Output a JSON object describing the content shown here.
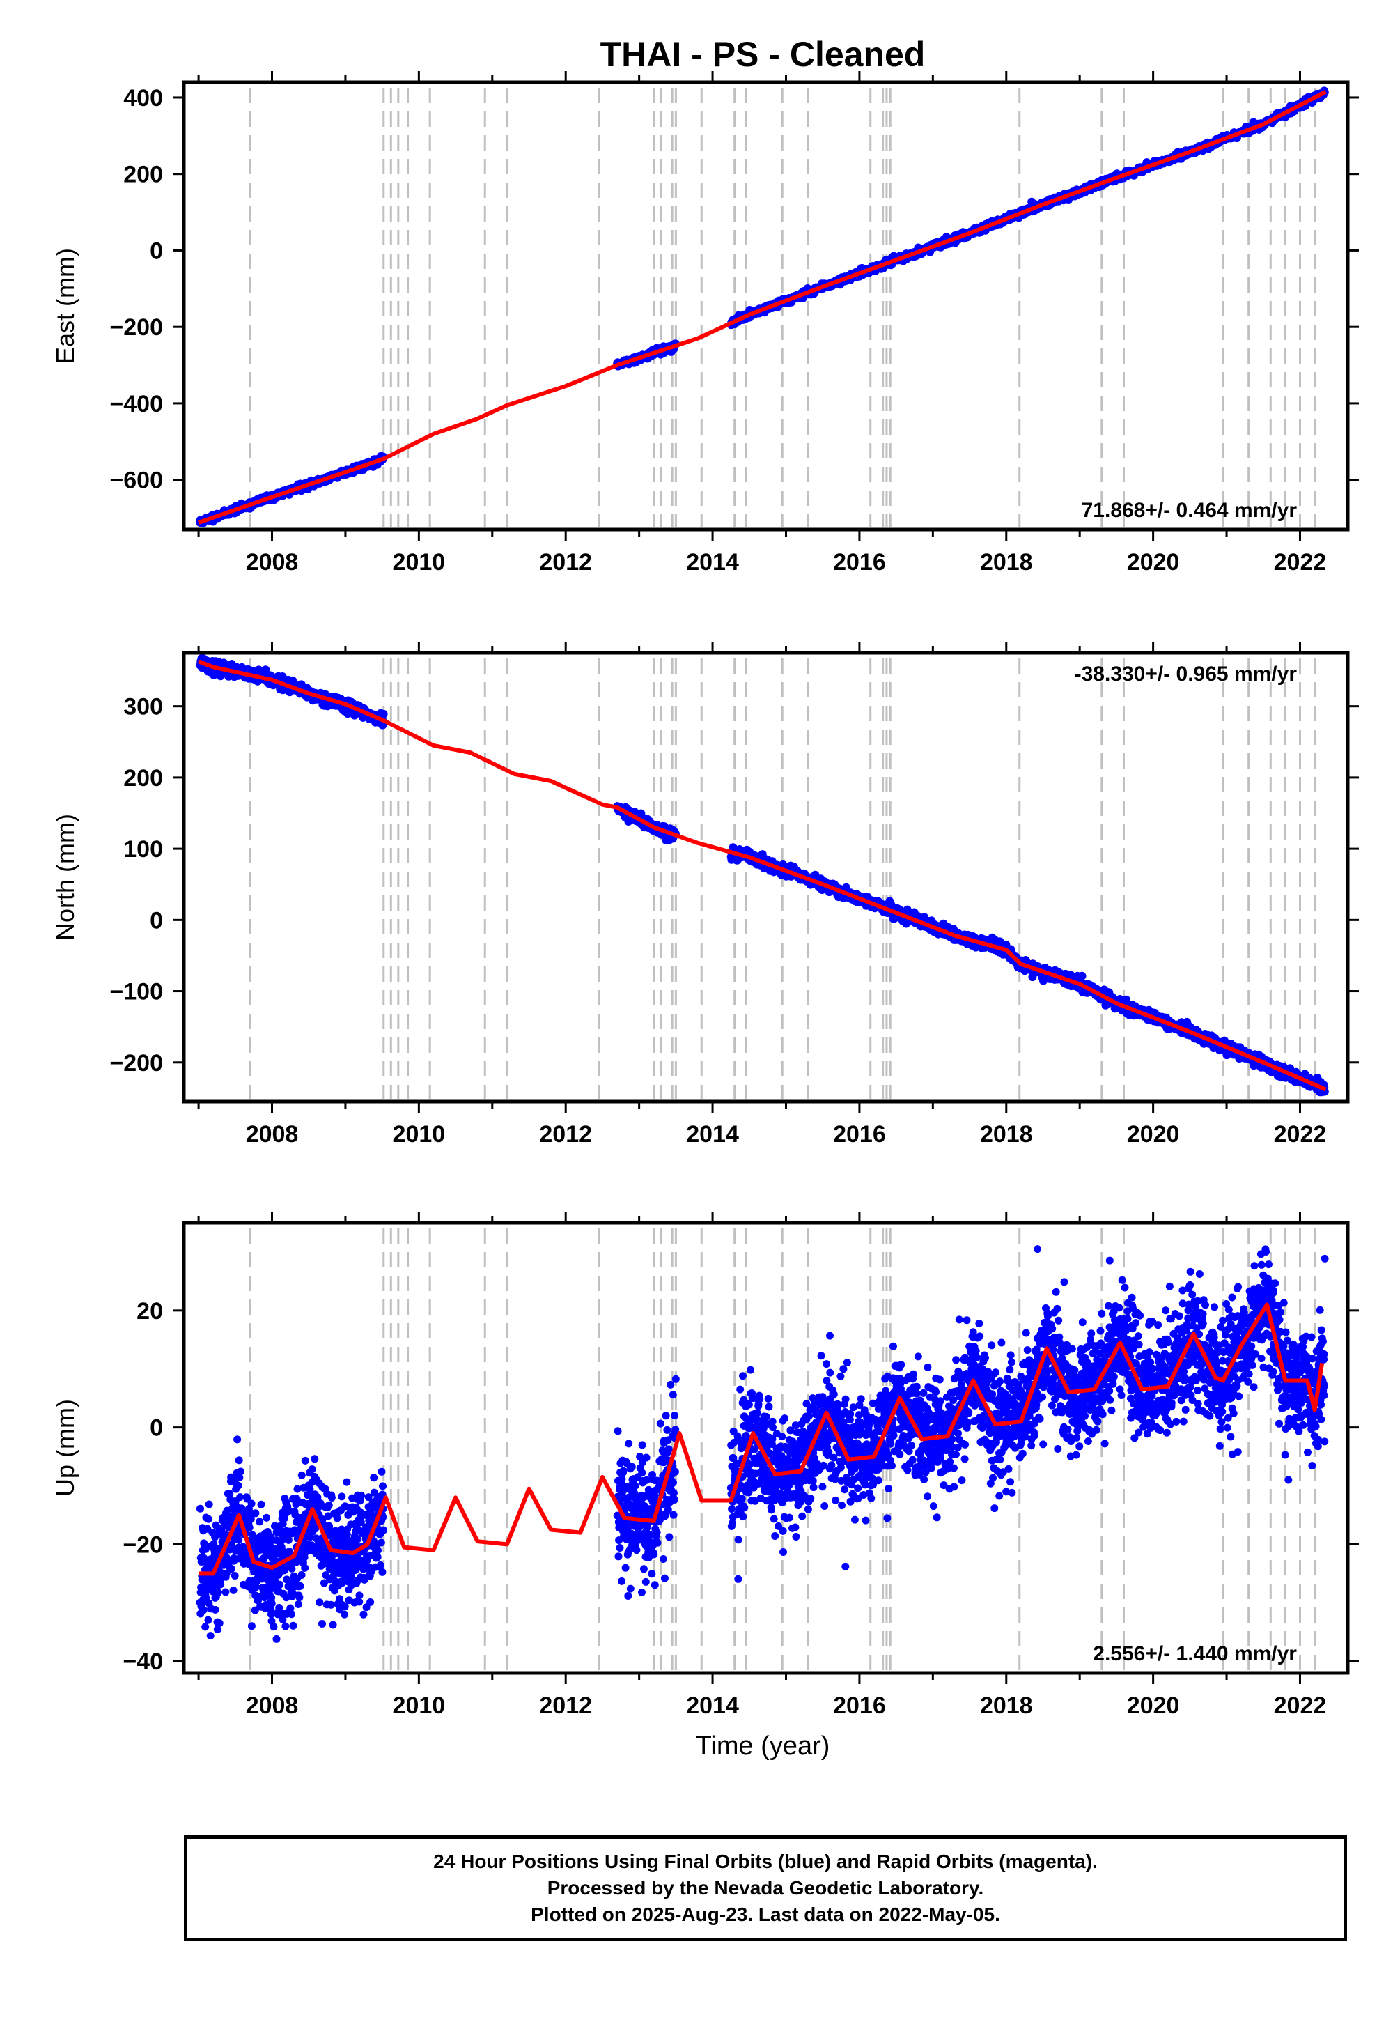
{
  "chart_data": {
    "title": "THAI  - PS - Cleaned",
    "xlabel": "Time (year)",
    "xlim": [
      2006.8,
      2022.65
    ],
    "x_ticks": [
      2008,
      2010,
      2012,
      2014,
      2016,
      2018,
      2020,
      2022
    ],
    "x_tick_labels": [
      "2008",
      "2010",
      "2012",
      "2014",
      "2016",
      "2018",
      "2020",
      "2022"
    ],
    "data_gaps": [
      [
        2009.52,
        2012.7
      ],
      [
        2013.5,
        2014.25
      ]
    ],
    "equipment_change_lines": [
      2007.7,
      2009.52,
      2009.62,
      2009.72,
      2009.85,
      2010.15,
      2010.9,
      2011.2,
      2012.45,
      2013.2,
      2013.3,
      2013.45,
      2013.5,
      2013.85,
      2014.3,
      2014.45,
      2014.95,
      2015.3,
      2016.15,
      2016.32,
      2016.37,
      2016.42,
      2018.18,
      2019.3,
      2019.6,
      2020.95,
      2021.3,
      2021.6,
      2021.8,
      2022.0,
      2022.2
    ],
    "panels": [
      {
        "name": "east",
        "type": "scatter",
        "ylabel": "East (mm)",
        "ylim": [
          -730,
          440
        ],
        "y_ticks": [
          -600,
          -400,
          -200,
          0,
          200,
          400
        ],
        "y_tick_labels": [
          "−600",
          "−400",
          "−200",
          "0",
          "200",
          "400"
        ],
        "rate_label": "71.868+/- 0.464 mm/yr",
        "rate_position": "bottom-right",
        "trend_knots": [
          [
            2007.0,
            -712
          ],
          [
            2008.0,
            -645
          ],
          [
            2009.0,
            -580
          ],
          [
            2009.52,
            -545
          ],
          [
            2010.2,
            -480
          ],
          [
            2010.8,
            -440
          ],
          [
            2011.2,
            -405
          ],
          [
            2012.0,
            -355
          ],
          [
            2012.7,
            -300
          ],
          [
            2013.8,
            -230
          ],
          [
            2014.5,
            -168
          ],
          [
            2015.5,
            -95
          ],
          [
            2016.5,
            -25
          ],
          [
            2017.5,
            45
          ],
          [
            2018.5,
            120
          ],
          [
            2019.5,
            190
          ],
          [
            2020.5,
            258
          ],
          [
            2021.5,
            330
          ],
          [
            2022.35,
            415
          ]
        ],
        "scatter": {
          "base": 0,
          "seasonal": 2,
          "noise": 4,
          "seed": 11
        }
      },
      {
        "name": "north",
        "type": "scatter",
        "ylabel": "North (mm)",
        "ylim": [
          -255,
          375
        ],
        "y_ticks": [
          -200,
          -100,
          0,
          100,
          200,
          300
        ],
        "y_tick_labels": [
          "−200",
          "−100",
          "0",
          "100",
          "200",
          "300"
        ],
        "rate_label": "-38.330+/- 0.965 mm/yr",
        "rate_position": "top-right",
        "trend_knots": [
          [
            2007.0,
            363
          ],
          [
            2007.2,
            355
          ],
          [
            2008.0,
            337
          ],
          [
            2008.5,
            318
          ],
          [
            2009.0,
            303
          ],
          [
            2009.52,
            280
          ],
          [
            2010.2,
            245
          ],
          [
            2010.7,
            235
          ],
          [
            2011.3,
            205
          ],
          [
            2011.8,
            195
          ],
          [
            2012.5,
            162
          ],
          [
            2012.7,
            158
          ],
          [
            2013.2,
            130
          ],
          [
            2013.8,
            108
          ],
          [
            2014.5,
            88
          ],
          [
            2015.5,
            50
          ],
          [
            2016.5,
            10
          ],
          [
            2017.3,
            -22
          ],
          [
            2018.0,
            -42
          ],
          [
            2018.2,
            -62
          ],
          [
            2019.0,
            -90
          ],
          [
            2019.5,
            -117
          ],
          [
            2020.5,
            -157
          ],
          [
            2021.5,
            -200
          ],
          [
            2022.35,
            -238
          ]
        ],
        "scatter": {
          "base": 0,
          "seasonal": 2,
          "noise": 4,
          "seed": 23
        }
      },
      {
        "name": "up",
        "type": "scatter",
        "ylabel": "Up (mm)",
        "ylim": [
          -42,
          35
        ],
        "y_ticks": [
          -40,
          -20,
          0,
          20
        ],
        "y_tick_labels": [
          "−40",
          "−20",
          "0",
          "20"
        ],
        "rate_label": "2.556+/- 1.440 mm/yr",
        "rate_position": "bottom-right",
        "trend_knots": [
          [
            2007.0,
            -25
          ],
          [
            2007.2,
            -25
          ],
          [
            2007.55,
            -15
          ],
          [
            2007.75,
            -23
          ],
          [
            2008.0,
            -24
          ],
          [
            2008.3,
            -22
          ],
          [
            2008.55,
            -14
          ],
          [
            2008.8,
            -21
          ],
          [
            2009.1,
            -21.5
          ],
          [
            2009.3,
            -20
          ],
          [
            2009.55,
            -12
          ],
          [
            2009.8,
            -20.5
          ],
          [
            2010.2,
            -21
          ],
          [
            2010.5,
            -12
          ],
          [
            2010.8,
            -19.5
          ],
          [
            2011.2,
            -20
          ],
          [
            2011.5,
            -10.5
          ],
          [
            2011.8,
            -17.5
          ],
          [
            2012.2,
            -18
          ],
          [
            2012.5,
            -8.5
          ],
          [
            2012.8,
            -15.5
          ],
          [
            2013.2,
            -16
          ],
          [
            2013.55,
            -1
          ],
          [
            2013.85,
            -12.5
          ],
          [
            2014.25,
            -12.5
          ],
          [
            2014.55,
            -1
          ],
          [
            2014.85,
            -8
          ],
          [
            2015.2,
            -7.5
          ],
          [
            2015.55,
            2.5
          ],
          [
            2015.85,
            -5.5
          ],
          [
            2016.2,
            -5
          ],
          [
            2016.55,
            5
          ],
          [
            2016.85,
            -2
          ],
          [
            2017.2,
            -1.5
          ],
          [
            2017.55,
            8
          ],
          [
            2017.85,
            0.5
          ],
          [
            2018.2,
            1
          ],
          [
            2018.55,
            13.5
          ],
          [
            2018.85,
            6
          ],
          [
            2019.2,
            6.5
          ],
          [
            2019.55,
            14.5
          ],
          [
            2019.85,
            6.5
          ],
          [
            2020.2,
            7
          ],
          [
            2020.55,
            16
          ],
          [
            2020.85,
            8.5
          ],
          [
            2020.95,
            8
          ],
          [
            2021.2,
            14
          ],
          [
            2021.55,
            21
          ],
          [
            2021.8,
            8
          ],
          [
            2022.1,
            8
          ],
          [
            2022.2,
            3
          ],
          [
            2022.3,
            11
          ]
        ],
        "scatter": {
          "base": 0,
          "seasonal": 0,
          "noise": 4.5,
          "seed": 37
        }
      }
    ],
    "colors": {
      "points": "#0000ff",
      "trend": "#ff0000",
      "event_lines": "#c0c0c0"
    }
  },
  "footer": {
    "line1": "24 Hour Positions Using Final Orbits (blue) and Rapid Orbits (magenta).",
    "line2": "Processed by the Nevada Geodetic Laboratory.",
    "line3": "Plotted on 2025-Aug-23. Last data on 2022-May-05."
  }
}
